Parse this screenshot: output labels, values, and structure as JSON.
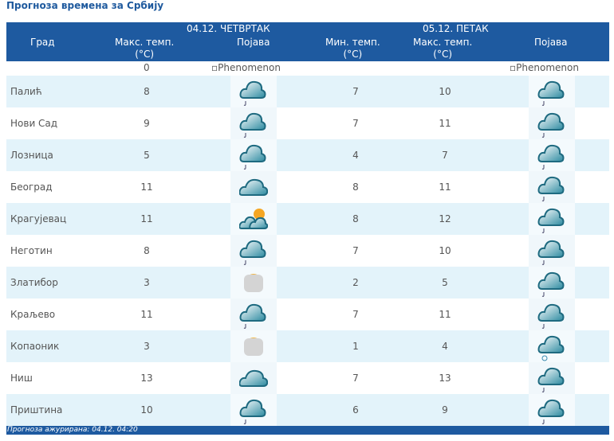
{
  "title": "Прогноза времена за Србију",
  "header": {
    "city": "Град",
    "day1": "04.12. ЧЕТВРТАК",
    "day2": "05.12. ПЕТАК",
    "max_temp": "Макс. темп.",
    "min_temp": "Мин. темп.",
    "unit": "(°C)",
    "phenomenon": "Појава"
  },
  "placeholder_row": {
    "max": "0",
    "img_alt": "Phenomenon"
  },
  "colors": {
    "header": "#1e5aa0",
    "row_alt": "#e3f3fa",
    "title": "#1f5a9e"
  },
  "rows": [
    {
      "city": "Палић",
      "max1": "8",
      "icon1": "rain-cloud",
      "min2": "7",
      "max2": "10",
      "icon2": "rain-cloud"
    },
    {
      "city": "Нови Сад",
      "max1": "9",
      "icon1": "rain-cloud",
      "min2": "7",
      "max2": "11",
      "icon2": "rain-cloud"
    },
    {
      "city": "Лозница",
      "max1": "5",
      "icon1": "rain-cloud",
      "min2": "4",
      "max2": "7",
      "icon2": "rain-cloud"
    },
    {
      "city": "Београд",
      "max1": "11",
      "icon1": "cloudy",
      "min2": "8",
      "max2": "11",
      "icon2": "rain-cloud"
    },
    {
      "city": "Крагујевац",
      "max1": "11",
      "icon1": "partly-cloudy",
      "min2": "8",
      "max2": "12",
      "icon2": "rain-cloud"
    },
    {
      "city": "Неготин",
      "max1": "8",
      "icon1": "rain-cloud",
      "min2": "7",
      "max2": "10",
      "icon2": "rain-cloud"
    },
    {
      "city": "Златибор",
      "max1": "3",
      "icon1": "fog-sun",
      "min2": "2",
      "max2": "5",
      "icon2": "rain-cloud"
    },
    {
      "city": "Краљево",
      "max1": "11",
      "icon1": "rain-cloud",
      "min2": "7",
      "max2": "11",
      "icon2": "rain-cloud"
    },
    {
      "city": "Копаоник",
      "max1": "3",
      "icon1": "fog-sun",
      "min2": "1",
      "max2": "4",
      "icon2": "snow-cloud"
    },
    {
      "city": "Ниш",
      "max1": "13",
      "icon1": "cloudy",
      "min2": "7",
      "max2": "13",
      "icon2": "rain-cloud"
    },
    {
      "city": "Приштина",
      "max1": "10",
      "icon1": "rain-cloud",
      "min2": "6",
      "max2": "9",
      "icon2": "rain-cloud"
    }
  ],
  "footer": "Прогноза ажурирана:  04.12. 04:20"
}
